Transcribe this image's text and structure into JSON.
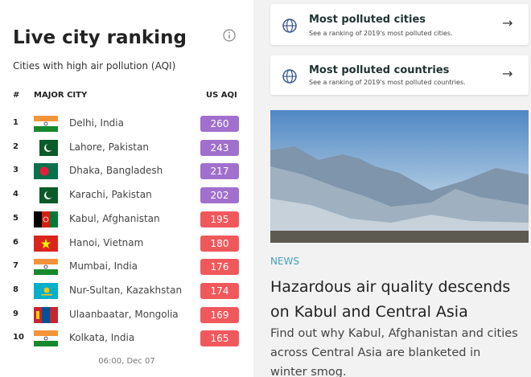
{
  "ranking": {
    "title": "Live city ranking",
    "subtitle": "Cities with high air pollution (AQI)",
    "headers": [
      "#",
      "MAJOR CITY",
      "US AQI"
    ],
    "rows": [
      {
        "rank": 1,
        "city": "Delhi, India",
        "aqi": 260,
        "color": "#a070cc"
      },
      {
        "rank": 2,
        "city": "Lahore, Pakistan",
        "aqi": 243,
        "color": "#a070cc"
      },
      {
        "rank": 3,
        "city": "Dhaka, Bangladesh",
        "aqi": 217,
        "color": "#a070cc"
      },
      {
        "rank": 4,
        "city": "Karachi, Pakistan",
        "aqi": 202,
        "color": "#a070cc"
      },
      {
        "rank": 5,
        "city": "Kabul, Afghanistan",
        "aqi": 195,
        "color": "#f0585c"
      },
      {
        "rank": 6,
        "city": "Hanoi, Vietnam",
        "aqi": 180,
        "color": "#f0585c"
      },
      {
        "rank": 7,
        "city": "Mumbai, India",
        "aqi": 176,
        "color": "#f0585c"
      },
      {
        "rank": 8,
        "city": "Nur-Sultan, Kazakhstan",
        "aqi": 174,
        "color": "#f0585c"
      },
      {
        "rank": 9,
        "city": "Ulaanbaatar, Mongolia",
        "aqi": 169,
        "color": "#f0585c"
      },
      {
        "rank": 10,
        "city": "Kolkata, India",
        "aqi": 165,
        "color": "#f0585c"
      }
    ],
    "timestamp": "06:00, Dec 07"
  },
  "links": [
    {
      "title": "Most polluted cities",
      "subtitle": "See a ranking of 2019's most polluted cities."
    },
    {
      "title": "Most polluted countries",
      "subtitle": "See a ranking of 2019's most polluted countries."
    }
  ],
  "news": {
    "label": "NEWS",
    "headline": "Hazardous air quality descends on Kabul and Central Asia",
    "body": "Find out why Kabul, Afghanistan and cities across Central Asia are blanketed in winter smog."
  }
}
